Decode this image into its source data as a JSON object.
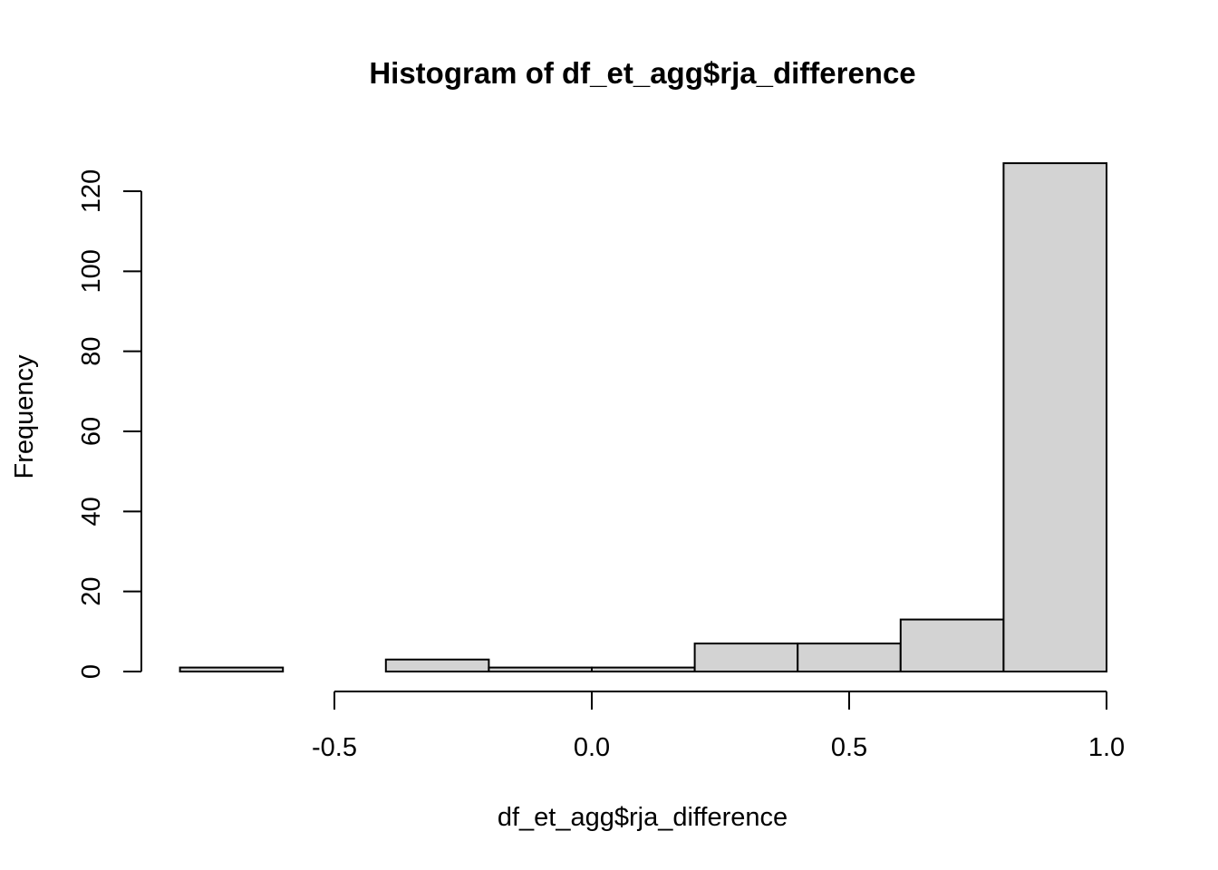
{
  "chart_data": {
    "type": "bar",
    "title": "Histogram of df_et_agg$rja_difference",
    "xlabel": "df_et_agg$rja_difference",
    "ylabel": "Frequency",
    "bins": [
      {
        "from": -0.8,
        "to": -0.6,
        "count": 1
      },
      {
        "from": -0.6,
        "to": -0.4,
        "count": 0
      },
      {
        "from": -0.4,
        "to": -0.2,
        "count": 3
      },
      {
        "from": -0.2,
        "to": 0.0,
        "count": 1
      },
      {
        "from": 0.0,
        "to": 0.2,
        "count": 1
      },
      {
        "from": 0.2,
        "to": 0.4,
        "count": 7
      },
      {
        "from": 0.4,
        "to": 0.6,
        "count": 7
      },
      {
        "from": 0.6,
        "to": 0.8,
        "count": 13
      },
      {
        "from": 0.8,
        "to": 1.0,
        "count": 127
      }
    ],
    "xlim": [
      -0.8,
      1.0
    ],
    "ylim": [
      0,
      127
    ],
    "x_ticks": [
      -0.5,
      0.0,
      0.5,
      1.0
    ],
    "x_tick_labels": [
      "-0.5",
      "0.0",
      "0.5",
      "1.0"
    ],
    "y_ticks": [
      0,
      20,
      40,
      60,
      80,
      100,
      120
    ],
    "y_tick_labels": [
      "0",
      "20",
      "40",
      "60",
      "80",
      "100",
      "120"
    ],
    "grid": false,
    "colors": {
      "bar_fill": "#d3d3d3",
      "bar_stroke": "#000000"
    }
  }
}
